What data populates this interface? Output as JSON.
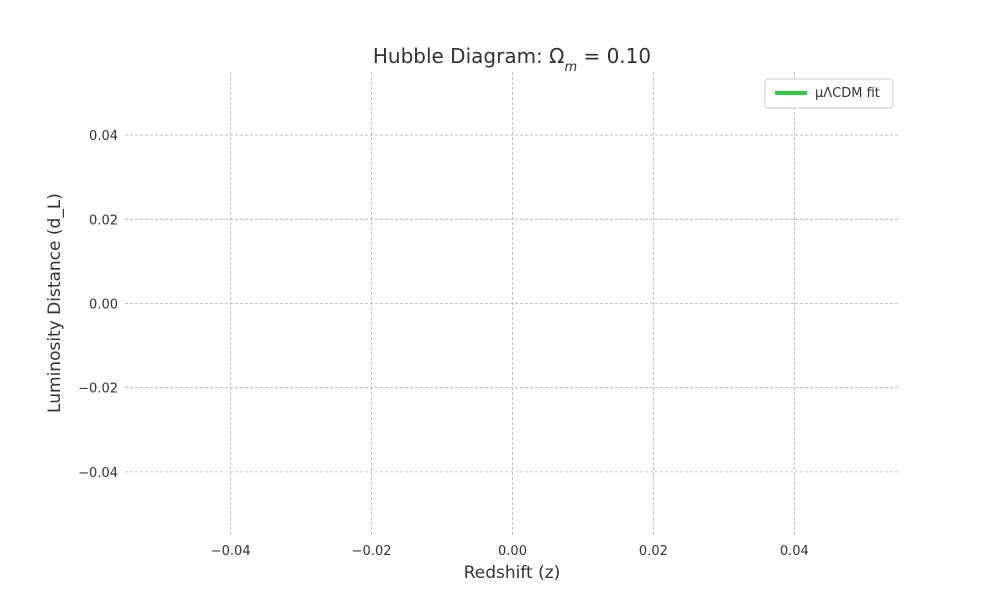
{
  "chart_data": {
    "type": "line",
    "title": "Hubble Diagram: Ω",
    "title_subscript": "m",
    "title_suffix": " = 0.10",
    "xlabel": "Redshift (z)",
    "ylabel": "Luminosity Distance (d_L)",
    "xlim": [
      -0.055,
      0.055
    ],
    "ylim": [
      -0.055,
      0.055
    ],
    "x_ticks": [
      -0.04,
      -0.02,
      0.0,
      0.02,
      0.04
    ],
    "x_tick_labels": [
      "−0.04",
      "−0.02",
      "0.00",
      "0.02",
      "0.04"
    ],
    "y_ticks": [
      0.04,
      0.02,
      0.0,
      -0.02,
      -0.04
    ],
    "y_tick_labels": [
      "0.04",
      "0.02",
      "0.00",
      "−0.02",
      "−0.04"
    ],
    "grid": true,
    "legend_position": "top-right",
    "series": [
      {
        "name": "μΛCDM fit",
        "color": "#2ecc40",
        "x": [],
        "y": []
      }
    ]
  }
}
